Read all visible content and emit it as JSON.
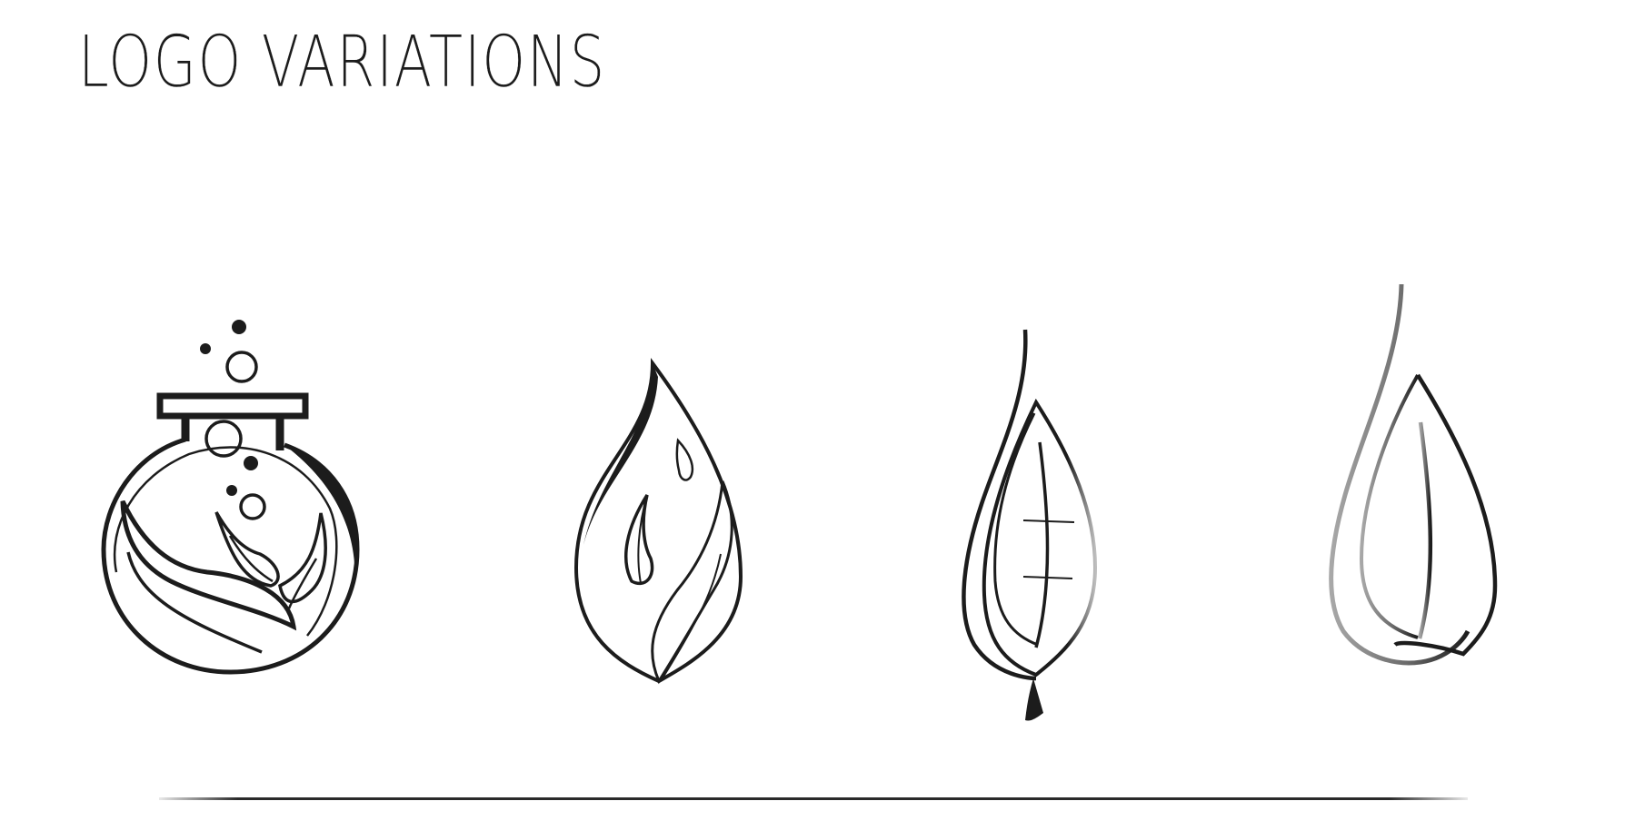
{
  "page": {
    "title": "LOGO VARIATIONS"
  },
  "colors": {
    "ink": "#1c1c1c",
    "gray": "#9a9a9a",
    "background": "#ffffff"
  },
  "logos": [
    {
      "icon": "flask-leaf-logo-icon"
    },
    {
      "icon": "drop-leaf-logo-icon"
    },
    {
      "icon": "leaf-stem-logo-icon"
    },
    {
      "icon": "gradient-leaf-logo-icon"
    }
  ]
}
